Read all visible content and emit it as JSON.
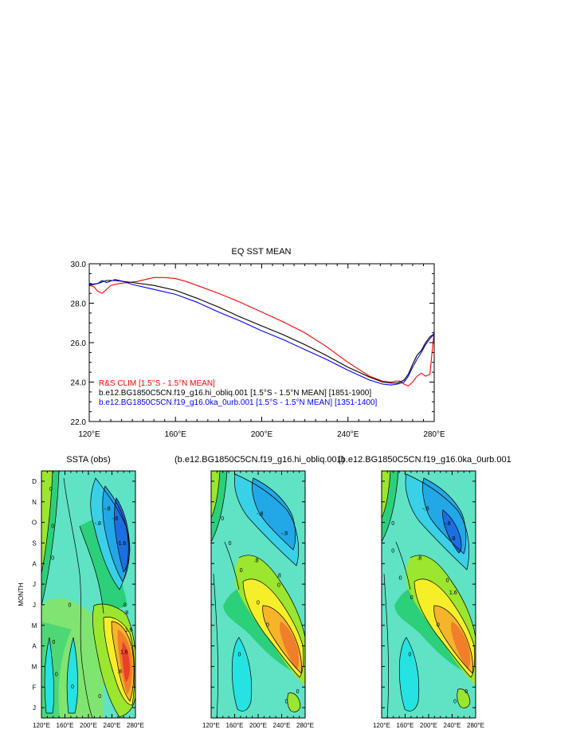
{
  "chart_data": [
    {
      "type": "line",
      "title": "EQ SST MEAN",
      "xlim": [
        120,
        280
      ],
      "ylim": [
        22,
        30
      ],
      "x_ticks": [
        "120°E",
        "160°E",
        "200°E",
        "240°E",
        "280°E"
      ],
      "y_ticks": [
        "22.0",
        "24.0",
        "26.0",
        "28.0",
        "30.0"
      ],
      "legend_position": "bottom-left",
      "grid": false,
      "series": [
        {
          "name": "R&S CLIM [1.5°S - 1.5°N MEAN]",
          "color": "#ff0000",
          "x": [
            120,
            122,
            124,
            126,
            128,
            130,
            132,
            134,
            138,
            142,
            146,
            150,
            155,
            160,
            165,
            170,
            180,
            190,
            200,
            210,
            220,
            230,
            240,
            250,
            256,
            260,
            262,
            264,
            266,
            268,
            270,
            272,
            274,
            276,
            278,
            280
          ],
          "y": [
            28.9,
            28.85,
            28.6,
            28.5,
            28.7,
            28.9,
            28.95,
            29.0,
            29.05,
            29.1,
            29.2,
            29.3,
            29.3,
            29.25,
            29.1,
            28.9,
            28.5,
            28.05,
            27.55,
            27.05,
            26.5,
            25.8,
            25.0,
            24.3,
            24.05,
            24.0,
            24.05,
            24.05,
            23.9,
            23.8,
            24.0,
            24.3,
            24.45,
            24.3,
            24.4,
            26.6
          ]
        },
        {
          "name": "b.e12.BG1850C5CN.f19_g16.hi_obliq.001 [1.5°S - 1.5°N MEAN] [1851-1900]",
          "color": "#000000",
          "x": [
            120,
            124,
            128,
            132,
            136,
            140,
            150,
            160,
            170,
            180,
            190,
            200,
            210,
            220,
            230,
            240,
            250,
            256,
            260,
            263,
            266,
            268,
            270,
            272,
            274,
            276,
            278,
            280
          ],
          "y": [
            28.95,
            29.0,
            29.15,
            29.15,
            29.1,
            29.05,
            28.9,
            28.65,
            28.25,
            27.8,
            27.3,
            26.85,
            26.4,
            25.9,
            25.35,
            24.75,
            24.25,
            24.0,
            23.95,
            23.95,
            24.1,
            24.4,
            24.9,
            25.35,
            25.6,
            26.0,
            26.3,
            26.45
          ]
        },
        {
          "name": "b.e12.BG1850C5CN.f19_g16.0ka_0urb.001 [1.5°S - 1.5°N MEAN] [1351-1400]",
          "color": "#0000ff",
          "x": [
            120,
            124,
            126,
            128,
            132,
            136,
            140,
            150,
            160,
            170,
            180,
            190,
            200,
            210,
            220,
            230,
            240,
            250,
            256,
            260,
            263,
            266,
            268,
            270,
            272,
            274,
            276,
            278,
            280
          ],
          "y": [
            28.9,
            29.0,
            29.15,
            29.05,
            29.2,
            29.1,
            28.95,
            28.7,
            28.45,
            28.05,
            27.55,
            27.1,
            26.6,
            26.15,
            25.65,
            25.15,
            24.6,
            24.1,
            23.9,
            23.85,
            23.9,
            24.0,
            24.3,
            24.75,
            25.15,
            25.5,
            25.9,
            26.2,
            26.45
          ]
        }
      ]
    },
    {
      "type": "heatmap",
      "title": "SSTA (obs)",
      "ylabel": "MONTH",
      "x_ticks": [
        "120°E",
        "160°E",
        "200°E",
        "240°E",
        "280°E"
      ],
      "y_ticks": [
        "J",
        "F",
        "M",
        "A",
        "M",
        "J",
        "J",
        "A",
        "S",
        "O",
        "N",
        "D"
      ],
      "contour_labels": [
        "0",
        "0",
        "0",
        "0",
        "0",
        "0",
        "0",
        "0",
        "-.8",
        "-.8",
        "-1.6",
        "-.8",
        ".8",
        ".8",
        "1.6",
        "1.6",
        ".8"
      ]
    },
    {
      "type": "heatmap",
      "title": "(b.e12.BG1850C5CN.f19_g16.hi_obliq.001)",
      "x_ticks": [
        "120°E",
        "160°E",
        "200°E",
        "240°E",
        "280°E"
      ],
      "contour_labels": [
        "0",
        "0",
        "0",
        "0",
        "0",
        "0",
        "0",
        "0",
        "-.8",
        "-.8",
        ".8",
        ".8",
        "0"
      ]
    },
    {
      "type": "heatmap",
      "title": "(b.e12.BG1850C5CN.f19_g16.0ka_0urb.001",
      "x_ticks": [
        "120°E",
        "160°E",
        "200°E",
        "240°E",
        "280°E"
      ],
      "contour_labels": [
        "0",
        "0",
        "0",
        "0",
        "0",
        "0",
        "0",
        "0",
        "-.8",
        "-.8",
        "-.8",
        ".8",
        "1.6",
        "0"
      ]
    }
  ]
}
